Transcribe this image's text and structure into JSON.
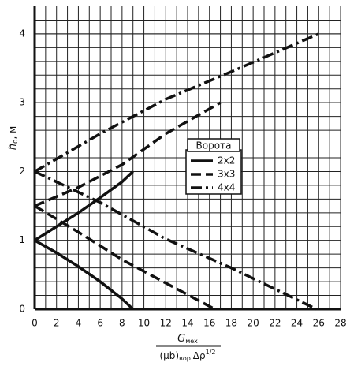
{
  "chart_data": {
    "type": "line",
    "ylabel": [
      "h",
      "o",
      ", м"
    ],
    "xlabel_numerator": [
      "G",
      "мех"
    ],
    "xlabel_denominator": [
      "(μb)",
      "вор",
      "Δρ",
      "1/2"
    ],
    "legend_title": "Ворота",
    "color": "#111111",
    "grid": true,
    "xlim": [
      0,
      28
    ],
    "xticks": [
      0,
      2,
      4,
      6,
      8,
      10,
      12,
      14,
      16,
      18,
      20,
      22,
      24,
      26,
      28
    ],
    "ylim": [
      0,
      4.4
    ],
    "yticks": [
      0,
      1,
      2,
      3,
      4
    ],
    "series": [
      {
        "name": "2x2",
        "dash": "solid",
        "lines": [
          {
            "x": [
              0,
              2,
              4,
              6,
              8,
              9
            ],
            "values": [
              1.0,
              1.2,
              1.4,
              1.62,
              1.85,
              2.0
            ]
          },
          {
            "x": [
              0,
              2,
              4,
              6,
              8,
              9
            ],
            "values": [
              1.0,
              0.82,
              0.62,
              0.4,
              0.15,
              0
            ]
          }
        ]
      },
      {
        "name": "3x3",
        "dash": "dashed",
        "lines": [
          {
            "x": [
              0,
              4,
              8,
              12,
              17
            ],
            "values": [
              1.5,
              1.77,
              2.1,
              2.55,
              3.0
            ]
          },
          {
            "x": [
              0,
              4,
              8,
              12,
              16.5
            ],
            "values": [
              1.5,
              1.12,
              0.72,
              0.38,
              0
            ]
          }
        ]
      },
      {
        "name": "4x4",
        "dash": "dashdot",
        "lines": [
          {
            "x": [
              0,
              6,
              12,
              18,
              26
            ],
            "values": [
              2.0,
              2.55,
              3.05,
              3.45,
              4.0
            ]
          },
          {
            "x": [
              0,
              6,
              12,
              18,
              25.8
            ],
            "values": [
              2.0,
              1.55,
              1.02,
              0.6,
              0
            ]
          }
        ]
      }
    ]
  }
}
